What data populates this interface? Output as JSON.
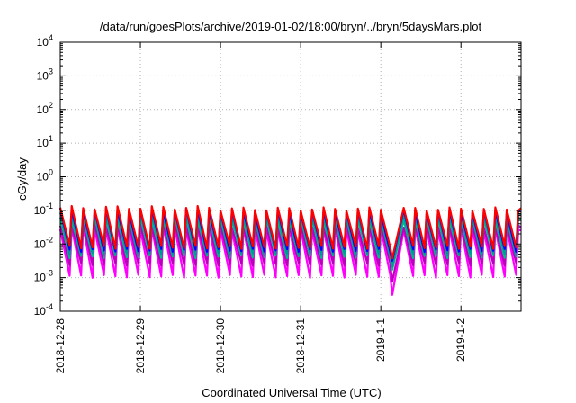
{
  "chart_data": {
    "type": "line",
    "title": "/data/run/goesPlots/archive/2019-01-02/18:00/bryn/../bryn/5daysMars.plot",
    "xlabel": "Coordinated Universal Time (UTC)",
    "ylabel": "cGy/day",
    "y_scale": "log",
    "ylim": [
      0.0001,
      10000
    ],
    "y_ticks": [
      {
        "value": 0.0001,
        "base": "10",
        "exp": "-4"
      },
      {
        "value": 0.001,
        "base": "10",
        "exp": "-3"
      },
      {
        "value": 0.01,
        "base": "10",
        "exp": "-2"
      },
      {
        "value": 0.1,
        "base": "10",
        "exp": "-1"
      },
      {
        "value": 1,
        "base": "10",
        "exp": "0"
      },
      {
        "value": 10,
        "base": "10",
        "exp": "1"
      },
      {
        "value": 100,
        "base": "10",
        "exp": "2"
      },
      {
        "value": 1000,
        "base": "10",
        "exp": "3"
      },
      {
        "value": 10000,
        "base": "10",
        "exp": "4"
      }
    ],
    "xlim": [
      "2018-12-28",
      "2019-01-02T18:00"
    ],
    "x_ticks": [
      {
        "value": "2018-12-28",
        "label": "2018-12-28"
      },
      {
        "value": "2018-12-29",
        "label": "2018-12-29"
      },
      {
        "value": "2018-12-30",
        "label": "2018-12-30"
      },
      {
        "value": "2018-12-31",
        "label": "2018-12-31"
      },
      {
        "value": "2019-01-01",
        "label": "2019-1-1"
      },
      {
        "value": "2019-01-02",
        "label": "2019-1-2"
      }
    ],
    "grid": true,
    "legend": "none",
    "cycles_per_day": 7,
    "dip": {
      "start": "2019-01-01T01:10",
      "end": "2019-01-01T05:00"
    },
    "series": [
      {
        "color": "#ff0000",
        "peak": 0.11,
        "trough": 0.008,
        "dip_low": 0.0035
      },
      {
        "color": "#0000ff",
        "peak": 0.095,
        "trough": 0.0065,
        "dip_low": 0.003
      },
      {
        "color": "#009999",
        "peak": 0.07,
        "trough": 0.005,
        "dip_low": 0.002
      },
      {
        "color": "#00bb88",
        "peak": 0.055,
        "trough": 0.0042,
        "dip_low": 0.0016
      },
      {
        "color": "#bb00bb",
        "peak": 0.035,
        "trough": 0.0025,
        "dip_low": 0.0007
      },
      {
        "color": "#ff00ff",
        "peak": 0.028,
        "trough": 0.0011,
        "dip_low": 0.00028
      }
    ]
  }
}
